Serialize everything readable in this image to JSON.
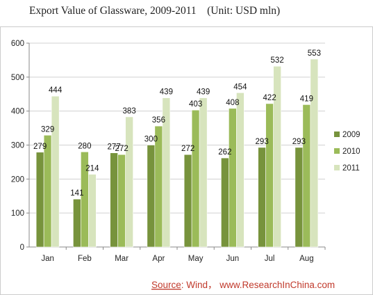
{
  "chart_data": {
    "type": "bar",
    "title": "Export Value of Glassware, 2009-2011　(Unit: USD mln)",
    "categories": [
      "Jan",
      "Feb",
      "Mar",
      "Apr",
      "May",
      "Jun",
      "Jul",
      "Aug"
    ],
    "series": [
      {
        "name": "2009",
        "values": [
          279,
          141,
          277,
          300,
          272,
          262,
          293,
          293
        ],
        "color": "#77933c"
      },
      {
        "name": "2010",
        "values": [
          329,
          280,
          272,
          356,
          403,
          408,
          422,
          419
        ],
        "color": "#9bbb59"
      },
      {
        "name": "2011",
        "values": [
          444,
          214,
          383,
          439,
          439,
          454,
          532,
          553
        ],
        "color": "#d7e4bd"
      }
    ],
    "yticks": [
      "0",
      "100",
      "200",
      "300",
      "400",
      "500",
      "600"
    ],
    "ylim": [
      0,
      600
    ],
    "grid": true,
    "legend_position": "right",
    "source": {
      "label": "Source",
      "text": ": Wind， www.ResearchInChina.com"
    }
  }
}
